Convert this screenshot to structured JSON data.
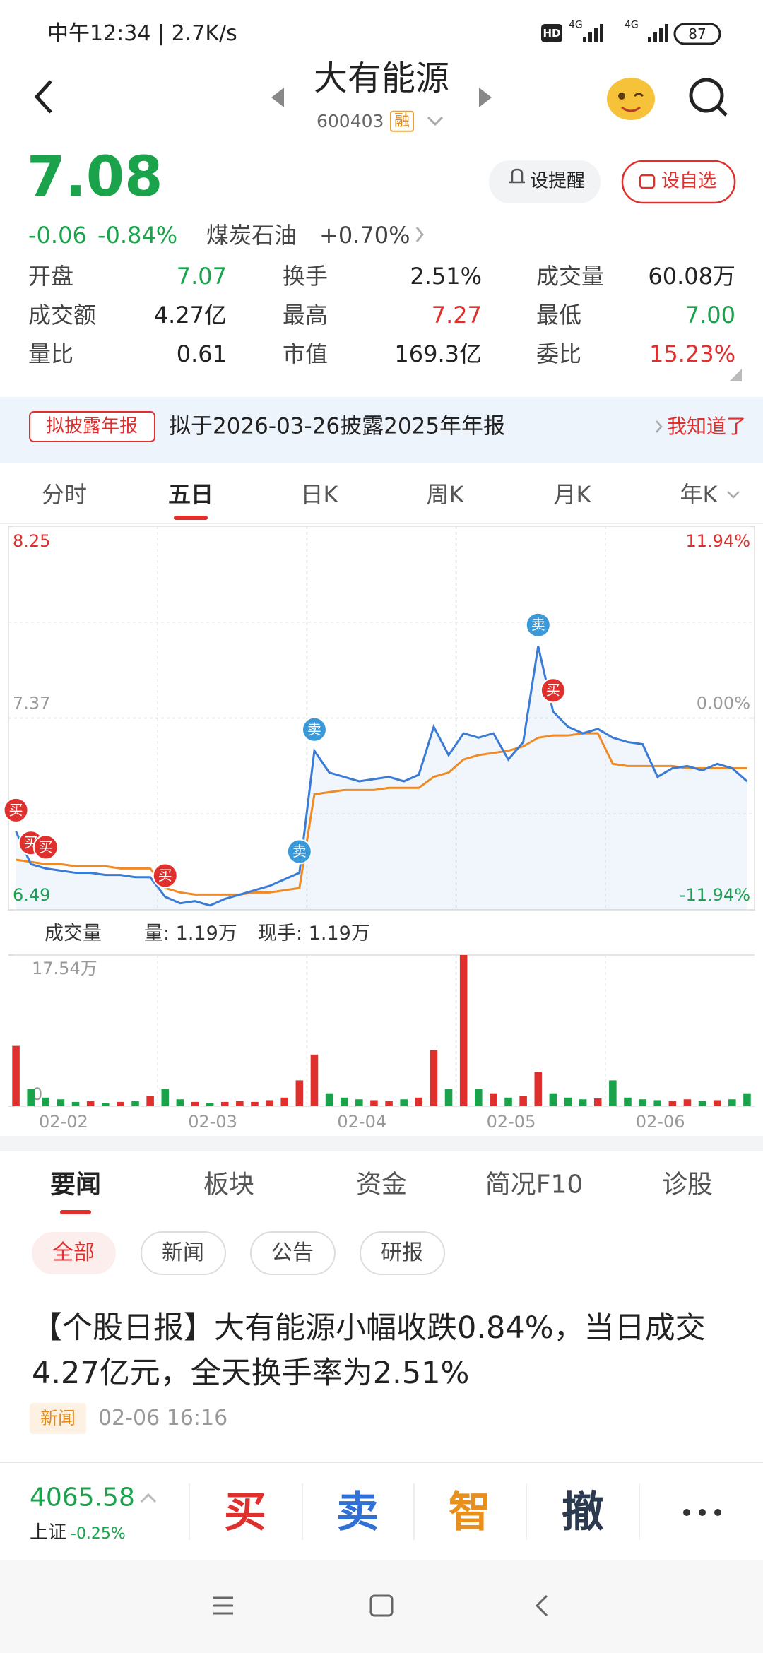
{
  "status_bar": {
    "time": "中午12:34 | 2.7K/s",
    "hd": "HD",
    "net1": "4G",
    "net2": "4G",
    "battery": "87"
  },
  "header": {
    "title": "大有能源",
    "code": "600403",
    "badge": "融"
  },
  "quote": {
    "price": "7.08",
    "change": "-0.06",
    "change_pct": "-0.84%",
    "sector": "煤炭石油",
    "sector_pct": "+0.70%",
    "alert_btn": "设提醒",
    "watch_btn": "设自选"
  },
  "stats": [
    {
      "label": "开盘",
      "value": "7.07",
      "color": "#1aa34a"
    },
    {
      "label": "换手",
      "value": "2.51%",
      "color": "#222222"
    },
    {
      "label": "成交量",
      "value": "60.08万",
      "color": "#222222"
    },
    {
      "label": "成交额",
      "value": "4.27亿",
      "color": "#222222"
    },
    {
      "label": "最高",
      "value": "7.27",
      "color": "#e0302d"
    },
    {
      "label": "最低",
      "value": "7.00",
      "color": "#1aa34a"
    },
    {
      "label": "量比",
      "value": "0.61",
      "color": "#222222"
    },
    {
      "label": "市值",
      "value": "169.3亿",
      "color": "#222222"
    },
    {
      "label": "委比",
      "value": "15.23%",
      "color": "#e0302d"
    }
  ],
  "notice": {
    "tag": "拟披露年报",
    "text": "拟于2026-03-26披露2025年年报",
    "action": "我知道了"
  },
  "chart_tabs": [
    "分时",
    "五日",
    "日K",
    "周K",
    "月K",
    "年K"
  ],
  "chart": {
    "type": "line",
    "ylim": [
      6.49,
      8.25
    ],
    "yticks": [
      8.25,
      7.37,
      6.49
    ],
    "y2lim": [
      -11.94,
      11.94
    ],
    "y2ticks": [
      {
        "value": 11.94,
        "label": "11.94%"
      },
      {
        "value": 0,
        "label": "0.00%"
      },
      {
        "value": -11.94,
        "label": "-11.94%"
      }
    ],
    "x_labels": [
      "02-02",
      "02-03",
      "02-04",
      "02-05",
      "02-06"
    ],
    "series": [
      {
        "color": "#3a7bd5",
        "values": [
          6.85,
          6.7,
          6.68,
          6.67,
          6.66,
          6.66,
          6.65,
          6.65,
          6.64,
          6.64,
          6.55,
          6.52,
          6.53,
          6.51,
          6.54,
          6.56,
          6.58,
          6.6,
          6.63,
          6.66,
          7.22,
          7.12,
          7.1,
          7.08,
          7.09,
          7.1,
          7.08,
          7.11,
          7.33,
          7.2,
          7.3,
          7.28,
          7.3,
          7.18,
          7.26,
          7.7,
          7.4,
          7.33,
          7.3,
          7.32,
          7.28,
          7.26,
          7.25,
          7.1,
          7.14,
          7.15,
          7.13,
          7.16,
          7.14,
          7.08
        ]
      },
      {
        "color": "#f08a24",
        "values": [
          6.72,
          6.71,
          6.7,
          6.7,
          6.69,
          6.69,
          6.69,
          6.68,
          6.68,
          6.68,
          6.59,
          6.57,
          6.56,
          6.56,
          6.56,
          6.56,
          6.57,
          6.57,
          6.58,
          6.59,
          7.02,
          7.03,
          7.04,
          7.04,
          7.04,
          7.05,
          7.05,
          7.05,
          7.1,
          7.12,
          7.18,
          7.2,
          7.21,
          7.22,
          7.24,
          7.28,
          7.29,
          7.29,
          7.3,
          7.3,
          7.16,
          7.15,
          7.15,
          7.15,
          7.15,
          7.14,
          7.14,
          7.14,
          7.14,
          7.14
        ]
      }
    ],
    "markers": [
      {
        "label": "买",
        "index": 0,
        "color": "#e0302d"
      },
      {
        "label": "买",
        "index": 1,
        "color": "#e0302d"
      },
      {
        "label": "买",
        "index": 2,
        "color": "#e0302d"
      },
      {
        "label": "买",
        "index": 10,
        "color": "#e0302d"
      },
      {
        "label": "卖",
        "index": 19,
        "color": "#3a9ad9"
      },
      {
        "label": "卖",
        "index": 20,
        "color": "#3a9ad9"
      },
      {
        "label": "卖",
        "index": 35,
        "color": "#3a9ad9"
      },
      {
        "label": "买",
        "index": 36,
        "color": "#e0302d"
      }
    ]
  },
  "volume": {
    "title": "成交量",
    "amount": "量: 1.19万",
    "last": "现手: 1.19万",
    "ylim": [
      0,
      17.54
    ],
    "yticks": [
      {
        "value": 17.54,
        "label": "17.54万"
      },
      0
    ],
    "up_color": "#e0302d",
    "down_color": "#1aa34a",
    "values": [
      7,
      2,
      1,
      0.8,
      0.5,
      0.6,
      0.4,
      0.5,
      0.6,
      1.2,
      2,
      0.8,
      0.5,
      0.4,
      0.5,
      0.6,
      0.5,
      0.7,
      1,
      3,
      6,
      1.5,
      1,
      0.8,
      0.7,
      0.6,
      0.8,
      1,
      6.5,
      2,
      17.54,
      2,
      1.5,
      1,
      1.2,
      4,
      1.5,
      1,
      0.8,
      0.9,
      3,
      1,
      0.8,
      0.7,
      0.6,
      0.8,
      0.6,
      0.7,
      0.8,
      1.5
    ]
  },
  "news_tabs": [
    "要闻",
    "板块",
    "资金",
    "简况F10",
    "诊股"
  ],
  "filters": [
    "全部",
    "新闻",
    "公告",
    "研报"
  ],
  "news": {
    "headline": "【个股日报】大有能源小幅收跌0.84%，当日成交4.27亿元，全天换手率为2.51%",
    "tag": "新闻",
    "time": "02-06 16:16"
  },
  "bottom_bar": {
    "index_value": "4065.58",
    "index_name": "上证",
    "index_pct": "-0.25%",
    "buy": "买",
    "sell": "卖",
    "smart": "智",
    "cancel": "撤"
  }
}
